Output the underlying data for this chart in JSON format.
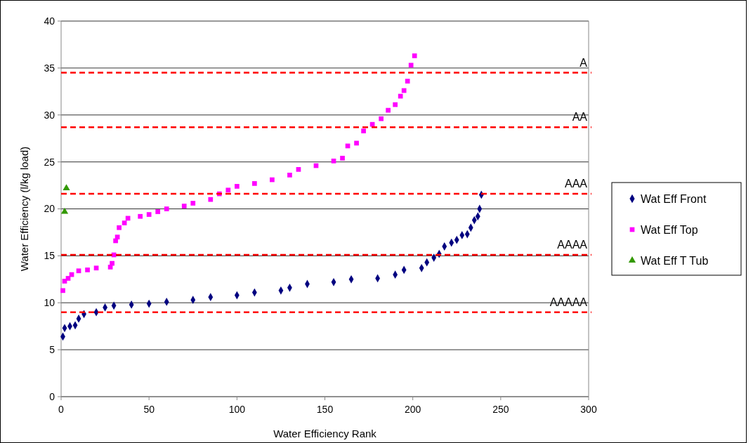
{
  "chart_data": {
    "type": "scatter",
    "xlabel": "Water Efficiency Rank",
    "ylabel": "Water Efficiency (l/kg load)",
    "xlim": [
      0,
      300
    ],
    "xticks": [
      0,
      50,
      100,
      150,
      200,
      250,
      300
    ],
    "ylim": [
      0,
      40
    ],
    "yticks": [
      0,
      5,
      10,
      15,
      20,
      25,
      30,
      35,
      40
    ],
    "grid": "y",
    "legend": "right",
    "series": [
      {
        "name": "Wat Eff Front",
        "color": "#000080",
        "marker": "diamond",
        "x": [
          1,
          2,
          5,
          8,
          10,
          13,
          20,
          25,
          30,
          40,
          50,
          60,
          75,
          85,
          100,
          110,
          125,
          130,
          140,
          155,
          165,
          180,
          190,
          195,
          205,
          208,
          212,
          215,
          218,
          222,
          225,
          228,
          231,
          233,
          235,
          237,
          238,
          239
        ],
        "values": [
          6.4,
          7.3,
          7.5,
          7.6,
          8.3,
          8.8,
          9.0,
          9.5,
          9.7,
          9.8,
          9.9,
          10.1,
          10.3,
          10.6,
          10.8,
          11.1,
          11.3,
          11.6,
          12.0,
          12.2,
          12.5,
          12.6,
          13.0,
          13.5,
          13.7,
          14.3,
          14.8,
          15.2,
          16.0,
          16.4,
          16.7,
          17.2,
          17.3,
          18.0,
          18.8,
          19.2,
          20.0,
          21.5
        ]
      },
      {
        "name": "Wat Eff Top",
        "color": "#ff00ff",
        "marker": "square",
        "x": [
          1,
          2,
          4,
          6,
          10,
          15,
          20,
          28,
          29,
          30,
          31,
          32,
          33,
          36,
          38,
          45,
          50,
          55,
          60,
          70,
          75,
          85,
          90,
          95,
          100,
          110,
          120,
          130,
          135,
          145,
          155,
          160,
          163,
          168,
          172,
          177,
          182,
          186,
          190,
          193,
          195,
          197,
          199,
          201
        ],
        "values": [
          11.3,
          12.3,
          12.6,
          13.0,
          13.4,
          13.5,
          13.7,
          13.8,
          14.2,
          15.1,
          16.6,
          17.0,
          18.0,
          18.5,
          19.0,
          19.2,
          19.4,
          19.7,
          20.0,
          20.3,
          20.6,
          21.0,
          21.6,
          22.0,
          22.4,
          22.7,
          23.1,
          23.6,
          24.2,
          24.6,
          25.1,
          25.4,
          26.7,
          27.0,
          28.3,
          29.0,
          29.6,
          30.5,
          31.1,
          32.0,
          32.6,
          33.6,
          35.3,
          36.3
        ]
      },
      {
        "name": "Wat Eff T Tub",
        "color": "#339900",
        "marker": "triangle",
        "x": [
          2,
          3
        ],
        "values": [
          19.7,
          22.2
        ]
      }
    ],
    "ref_lines": [
      {
        "axis": "y",
        "value": 34.5,
        "label": "A",
        "color": "#ff0000",
        "line_style": "dashed"
      },
      {
        "axis": "y",
        "value": 28.7,
        "label": "AA",
        "color": "#ff0000",
        "line_style": "dashed"
      },
      {
        "axis": "y",
        "value": 21.6,
        "label": "AAA",
        "color": "#ff0000",
        "line_style": "dashed"
      },
      {
        "axis": "y",
        "value": 15.1,
        "label": "AAAA",
        "color": "#ff0000",
        "line_style": "dashed"
      },
      {
        "axis": "y",
        "value": 9.0,
        "label": "AAAAA",
        "color": "#ff0000",
        "line_style": "dashed"
      }
    ]
  }
}
